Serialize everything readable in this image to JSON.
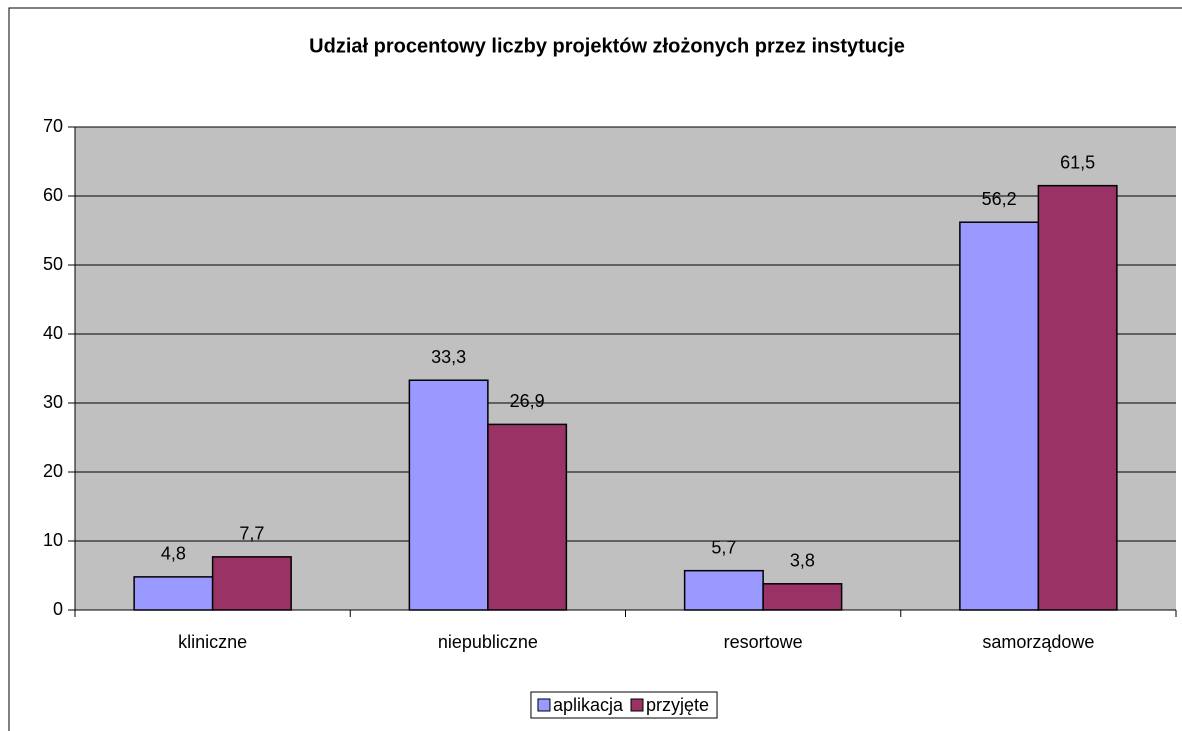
{
  "chart_data": {
    "type": "bar",
    "title": "Udział procentowy liczby projektów złożonych przez instytucje",
    "categories": [
      "kliniczne",
      "niepubliczne",
      "resortowe",
      "samorządowe"
    ],
    "series": [
      {
        "name": "aplikacja",
        "color": "#9999ff",
        "values": [
          4.8,
          33.3,
          5.7,
          56.2
        ],
        "value_labels": [
          "4,8",
          "33,3",
          "5,7",
          "56,2"
        ]
      },
      {
        "name": "przyjęte",
        "color": "#993366",
        "values": [
          7.7,
          26.9,
          3.8,
          61.5
        ],
        "value_labels": [
          "7,7",
          "26,9",
          "3,8",
          "61,5"
        ]
      }
    ],
    "ylim": [
      0,
      70
    ],
    "yticks": [
      0,
      10,
      20,
      30,
      40,
      50,
      60,
      70
    ],
    "grid": true,
    "legend": "bottom"
  }
}
